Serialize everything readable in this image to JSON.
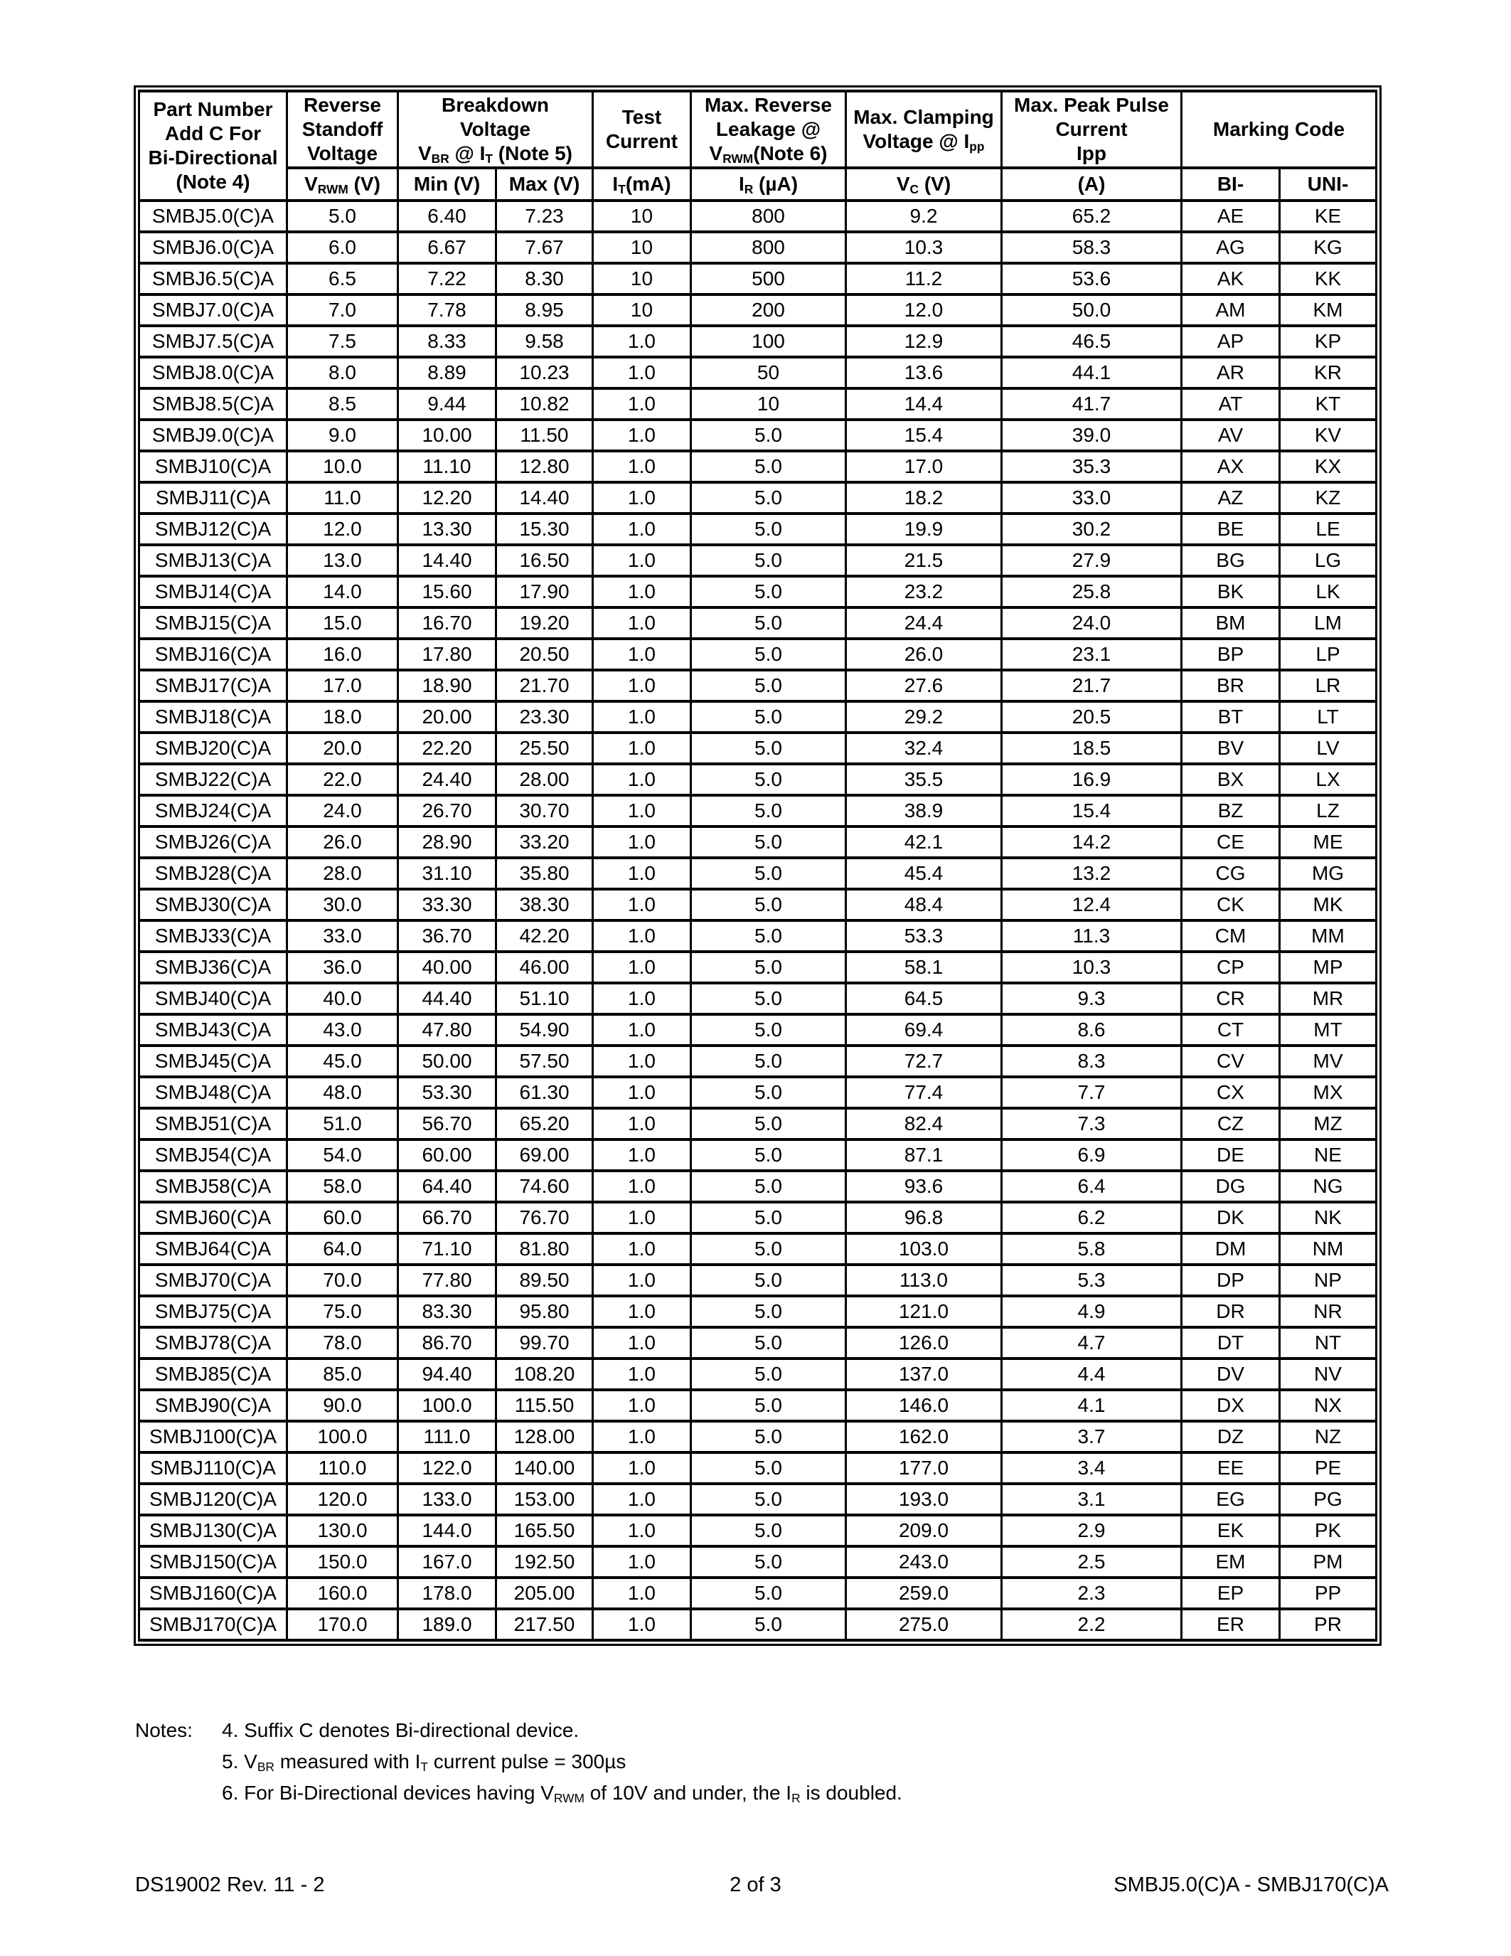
{
  "table": {
    "header_row1": [
      "Part Number\nAdd C For\nBi-Directional\n(Note 4)",
      "Reverse\nStandoff\nVoltage",
      "Breakdown\nVoltage\nV~BR~ @ I~T~ (Note 5)",
      "Test\nCurrent",
      "Max. Reverse\nLeakage @\nV~RWM~(Note 6)",
      "Max. Clamping\nVoltage @ I~pp~",
      "Max. Peak Pulse\nCurrent\nIpp",
      "Marking Code"
    ],
    "header_row2": [
      "V~RWM~ (V)",
      "Min (V)",
      "Max (V)",
      "I~T~(mA)",
      "I~R~ (µA)",
      "V~C~ (V)",
      "(A)",
      "BI-",
      "UNI-"
    ],
    "rows": [
      [
        "SMBJ5.0(C)A",
        "5.0",
        "6.40",
        "7.23",
        "10",
        "800",
        "9.2",
        "65.2",
        "AE",
        "KE"
      ],
      [
        "SMBJ6.0(C)A",
        "6.0",
        "6.67",
        "7.67",
        "10",
        "800",
        "10.3",
        "58.3",
        "AG",
        "KG"
      ],
      [
        "SMBJ6.5(C)A",
        "6.5",
        "7.22",
        "8.30",
        "10",
        "500",
        "11.2",
        "53.6",
        "AK",
        "KK"
      ],
      [
        "SMBJ7.0(C)A",
        "7.0",
        "7.78",
        "8.95",
        "10",
        "200",
        "12.0",
        "50.0",
        "AM",
        "KM"
      ],
      [
        "SMBJ7.5(C)A",
        "7.5",
        "8.33",
        "9.58",
        "1.0",
        "100",
        "12.9",
        "46.5",
        "AP",
        "KP"
      ],
      [
        "SMBJ8.0(C)A",
        "8.0",
        "8.89",
        "10.23",
        "1.0",
        "50",
        "13.6",
        "44.1",
        "AR",
        "KR"
      ],
      [
        "SMBJ8.5(C)A",
        "8.5",
        "9.44",
        "10.82",
        "1.0",
        "10",
        "14.4",
        "41.7",
        "AT",
        "KT"
      ],
      [
        "SMBJ9.0(C)A",
        "9.0",
        "10.00",
        "11.50",
        "1.0",
        "5.0",
        "15.4",
        "39.0",
        "AV",
        "KV"
      ],
      [
        "SMBJ10(C)A",
        "10.0",
        "11.10",
        "12.80",
        "1.0",
        "5.0",
        "17.0",
        "35.3",
        "AX",
        "KX"
      ],
      [
        "SMBJ11(C)A",
        "11.0",
        "12.20",
        "14.40",
        "1.0",
        "5.0",
        "18.2",
        "33.0",
        "AZ",
        "KZ"
      ],
      [
        "SMBJ12(C)A",
        "12.0",
        "13.30",
        "15.30",
        "1.0",
        "5.0",
        "19.9",
        "30.2",
        "BE",
        "LE"
      ],
      [
        "SMBJ13(C)A",
        "13.0",
        "14.40",
        "16.50",
        "1.0",
        "5.0",
        "21.5",
        "27.9",
        "BG",
        "LG"
      ],
      [
        "SMBJ14(C)A",
        "14.0",
        "15.60",
        "17.90",
        "1.0",
        "5.0",
        "23.2",
        "25.8",
        "BK",
        "LK"
      ],
      [
        "SMBJ15(C)A",
        "15.0",
        "16.70",
        "19.20",
        "1.0",
        "5.0",
        "24.4",
        "24.0",
        "BM",
        "LM"
      ],
      [
        "SMBJ16(C)A",
        "16.0",
        "17.80",
        "20.50",
        "1.0",
        "5.0",
        "26.0",
        "23.1",
        "BP",
        "LP"
      ],
      [
        "SMBJ17(C)A",
        "17.0",
        "18.90",
        "21.70",
        "1.0",
        "5.0",
        "27.6",
        "21.7",
        "BR",
        "LR"
      ],
      [
        "SMBJ18(C)A",
        "18.0",
        "20.00",
        "23.30",
        "1.0",
        "5.0",
        "29.2",
        "20.5",
        "BT",
        "LT"
      ],
      [
        "SMBJ20(C)A",
        "20.0",
        "22.20",
        "25.50",
        "1.0",
        "5.0",
        "32.4",
        "18.5",
        "BV",
        "LV"
      ],
      [
        "SMBJ22(C)A",
        "22.0",
        "24.40",
        "28.00",
        "1.0",
        "5.0",
        "35.5",
        "16.9",
        "BX",
        "LX"
      ],
      [
        "SMBJ24(C)A",
        "24.0",
        "26.70",
        "30.70",
        "1.0",
        "5.0",
        "38.9",
        "15.4",
        "BZ",
        "LZ"
      ],
      [
        "SMBJ26(C)A",
        "26.0",
        "28.90",
        "33.20",
        "1.0",
        "5.0",
        "42.1",
        "14.2",
        "CE",
        "ME"
      ],
      [
        "SMBJ28(C)A",
        "28.0",
        "31.10",
        "35.80",
        "1.0",
        "5.0",
        "45.4",
        "13.2",
        "CG",
        "MG"
      ],
      [
        "SMBJ30(C)A",
        "30.0",
        "33.30",
        "38.30",
        "1.0",
        "5.0",
        "48.4",
        "12.4",
        "CK",
        "MK"
      ],
      [
        "SMBJ33(C)A",
        "33.0",
        "36.70",
        "42.20",
        "1.0",
        "5.0",
        "53.3",
        "11.3",
        "CM",
        "MM"
      ],
      [
        "SMBJ36(C)A",
        "36.0",
        "40.00",
        "46.00",
        "1.0",
        "5.0",
        "58.1",
        "10.3",
        "CP",
        "MP"
      ],
      [
        "SMBJ40(C)A",
        "40.0",
        "44.40",
        "51.10",
        "1.0",
        "5.0",
        "64.5",
        "9.3",
        "CR",
        "MR"
      ],
      [
        "SMBJ43(C)A",
        "43.0",
        "47.80",
        "54.90",
        "1.0",
        "5.0",
        "69.4",
        "8.6",
        "CT",
        "MT"
      ],
      [
        "SMBJ45(C)A",
        "45.0",
        "50.00",
        "57.50",
        "1.0",
        "5.0",
        "72.7",
        "8.3",
        "CV",
        "MV"
      ],
      [
        "SMBJ48(C)A",
        "48.0",
        "53.30",
        "61.30",
        "1.0",
        "5.0",
        "77.4",
        "7.7",
        "CX",
        "MX"
      ],
      [
        "SMBJ51(C)A",
        "51.0",
        "56.70",
        "65.20",
        "1.0",
        "5.0",
        "82.4",
        "7.3",
        "CZ",
        "MZ"
      ],
      [
        "SMBJ54(C)A",
        "54.0",
        "60.00",
        "69.00",
        "1.0",
        "5.0",
        "87.1",
        "6.9",
        "DE",
        "NE"
      ],
      [
        "SMBJ58(C)A",
        "58.0",
        "64.40",
        "74.60",
        "1.0",
        "5.0",
        "93.6",
        "6.4",
        "DG",
        "NG"
      ],
      [
        "SMBJ60(C)A",
        "60.0",
        "66.70",
        "76.70",
        "1.0",
        "5.0",
        "96.8",
        "6.2",
        "DK",
        "NK"
      ],
      [
        "SMBJ64(C)A",
        "64.0",
        "71.10",
        "81.80",
        "1.0",
        "5.0",
        "103.0",
        "5.8",
        "DM",
        "NM"
      ],
      [
        "SMBJ70(C)A",
        "70.0",
        "77.80",
        "89.50",
        "1.0",
        "5.0",
        "113.0",
        "5.3",
        "DP",
        "NP"
      ],
      [
        "SMBJ75(C)A",
        "75.0",
        "83.30",
        "95.80",
        "1.0",
        "5.0",
        "121.0",
        "4.9",
        "DR",
        "NR"
      ],
      [
        "SMBJ78(C)A",
        "78.0",
        "86.70",
        "99.70",
        "1.0",
        "5.0",
        "126.0",
        "4.7",
        "DT",
        "NT"
      ],
      [
        "SMBJ85(C)A",
        "85.0",
        "94.40",
        "108.20",
        "1.0",
        "5.0",
        "137.0",
        "4.4",
        "DV",
        "NV"
      ],
      [
        "SMBJ90(C)A",
        "90.0",
        "100.0",
        "115.50",
        "1.0",
        "5.0",
        "146.0",
        "4.1",
        "DX",
        "NX"
      ],
      [
        "SMBJ100(C)A",
        "100.0",
        "111.0",
        "128.00",
        "1.0",
        "5.0",
        "162.0",
        "3.7",
        "DZ",
        "NZ"
      ],
      [
        "SMBJ110(C)A",
        "110.0",
        "122.0",
        "140.00",
        "1.0",
        "5.0",
        "177.0",
        "3.4",
        "EE",
        "PE"
      ],
      [
        "SMBJ120(C)A",
        "120.0",
        "133.0",
        "153.00",
        "1.0",
        "5.0",
        "193.0",
        "3.1",
        "EG",
        "PG"
      ],
      [
        "SMBJ130(C)A",
        "130.0",
        "144.0",
        "165.50",
        "1.0",
        "5.0",
        "209.0",
        "2.9",
        "EK",
        "PK"
      ],
      [
        "SMBJ150(C)A",
        "150.0",
        "167.0",
        "192.50",
        "1.0",
        "5.0",
        "243.0",
        "2.5",
        "EM",
        "PM"
      ],
      [
        "SMBJ160(C)A",
        "160.0",
        "178.0",
        "205.00",
        "1.0",
        "5.0",
        "259.0",
        "2.3",
        "EP",
        "PP"
      ],
      [
        "SMBJ170(C)A",
        "170.0",
        "189.0",
        "217.50",
        "1.0",
        "5.0",
        "275.0",
        "2.2",
        "ER",
        "PR"
      ]
    ]
  },
  "notes": {
    "label": "Notes:",
    "items": [
      "4. Suffix C denotes Bi-directional device.",
      "5. V~BR~ measured with I~T~ current pulse = 300µs",
      "6. For Bi-Directional devices having V~RWM~ of 10V and under, the I~R~ is doubled."
    ]
  },
  "footer": {
    "left": "DS19002 Rev. 11 - 2",
    "center": "2 of 3",
    "right": "SMBJ5.0(C)A - SMBJ170(C)A"
  },
  "colors": {
    "border": "#000000",
    "background": "#ffffff",
    "text": "#000000"
  }
}
